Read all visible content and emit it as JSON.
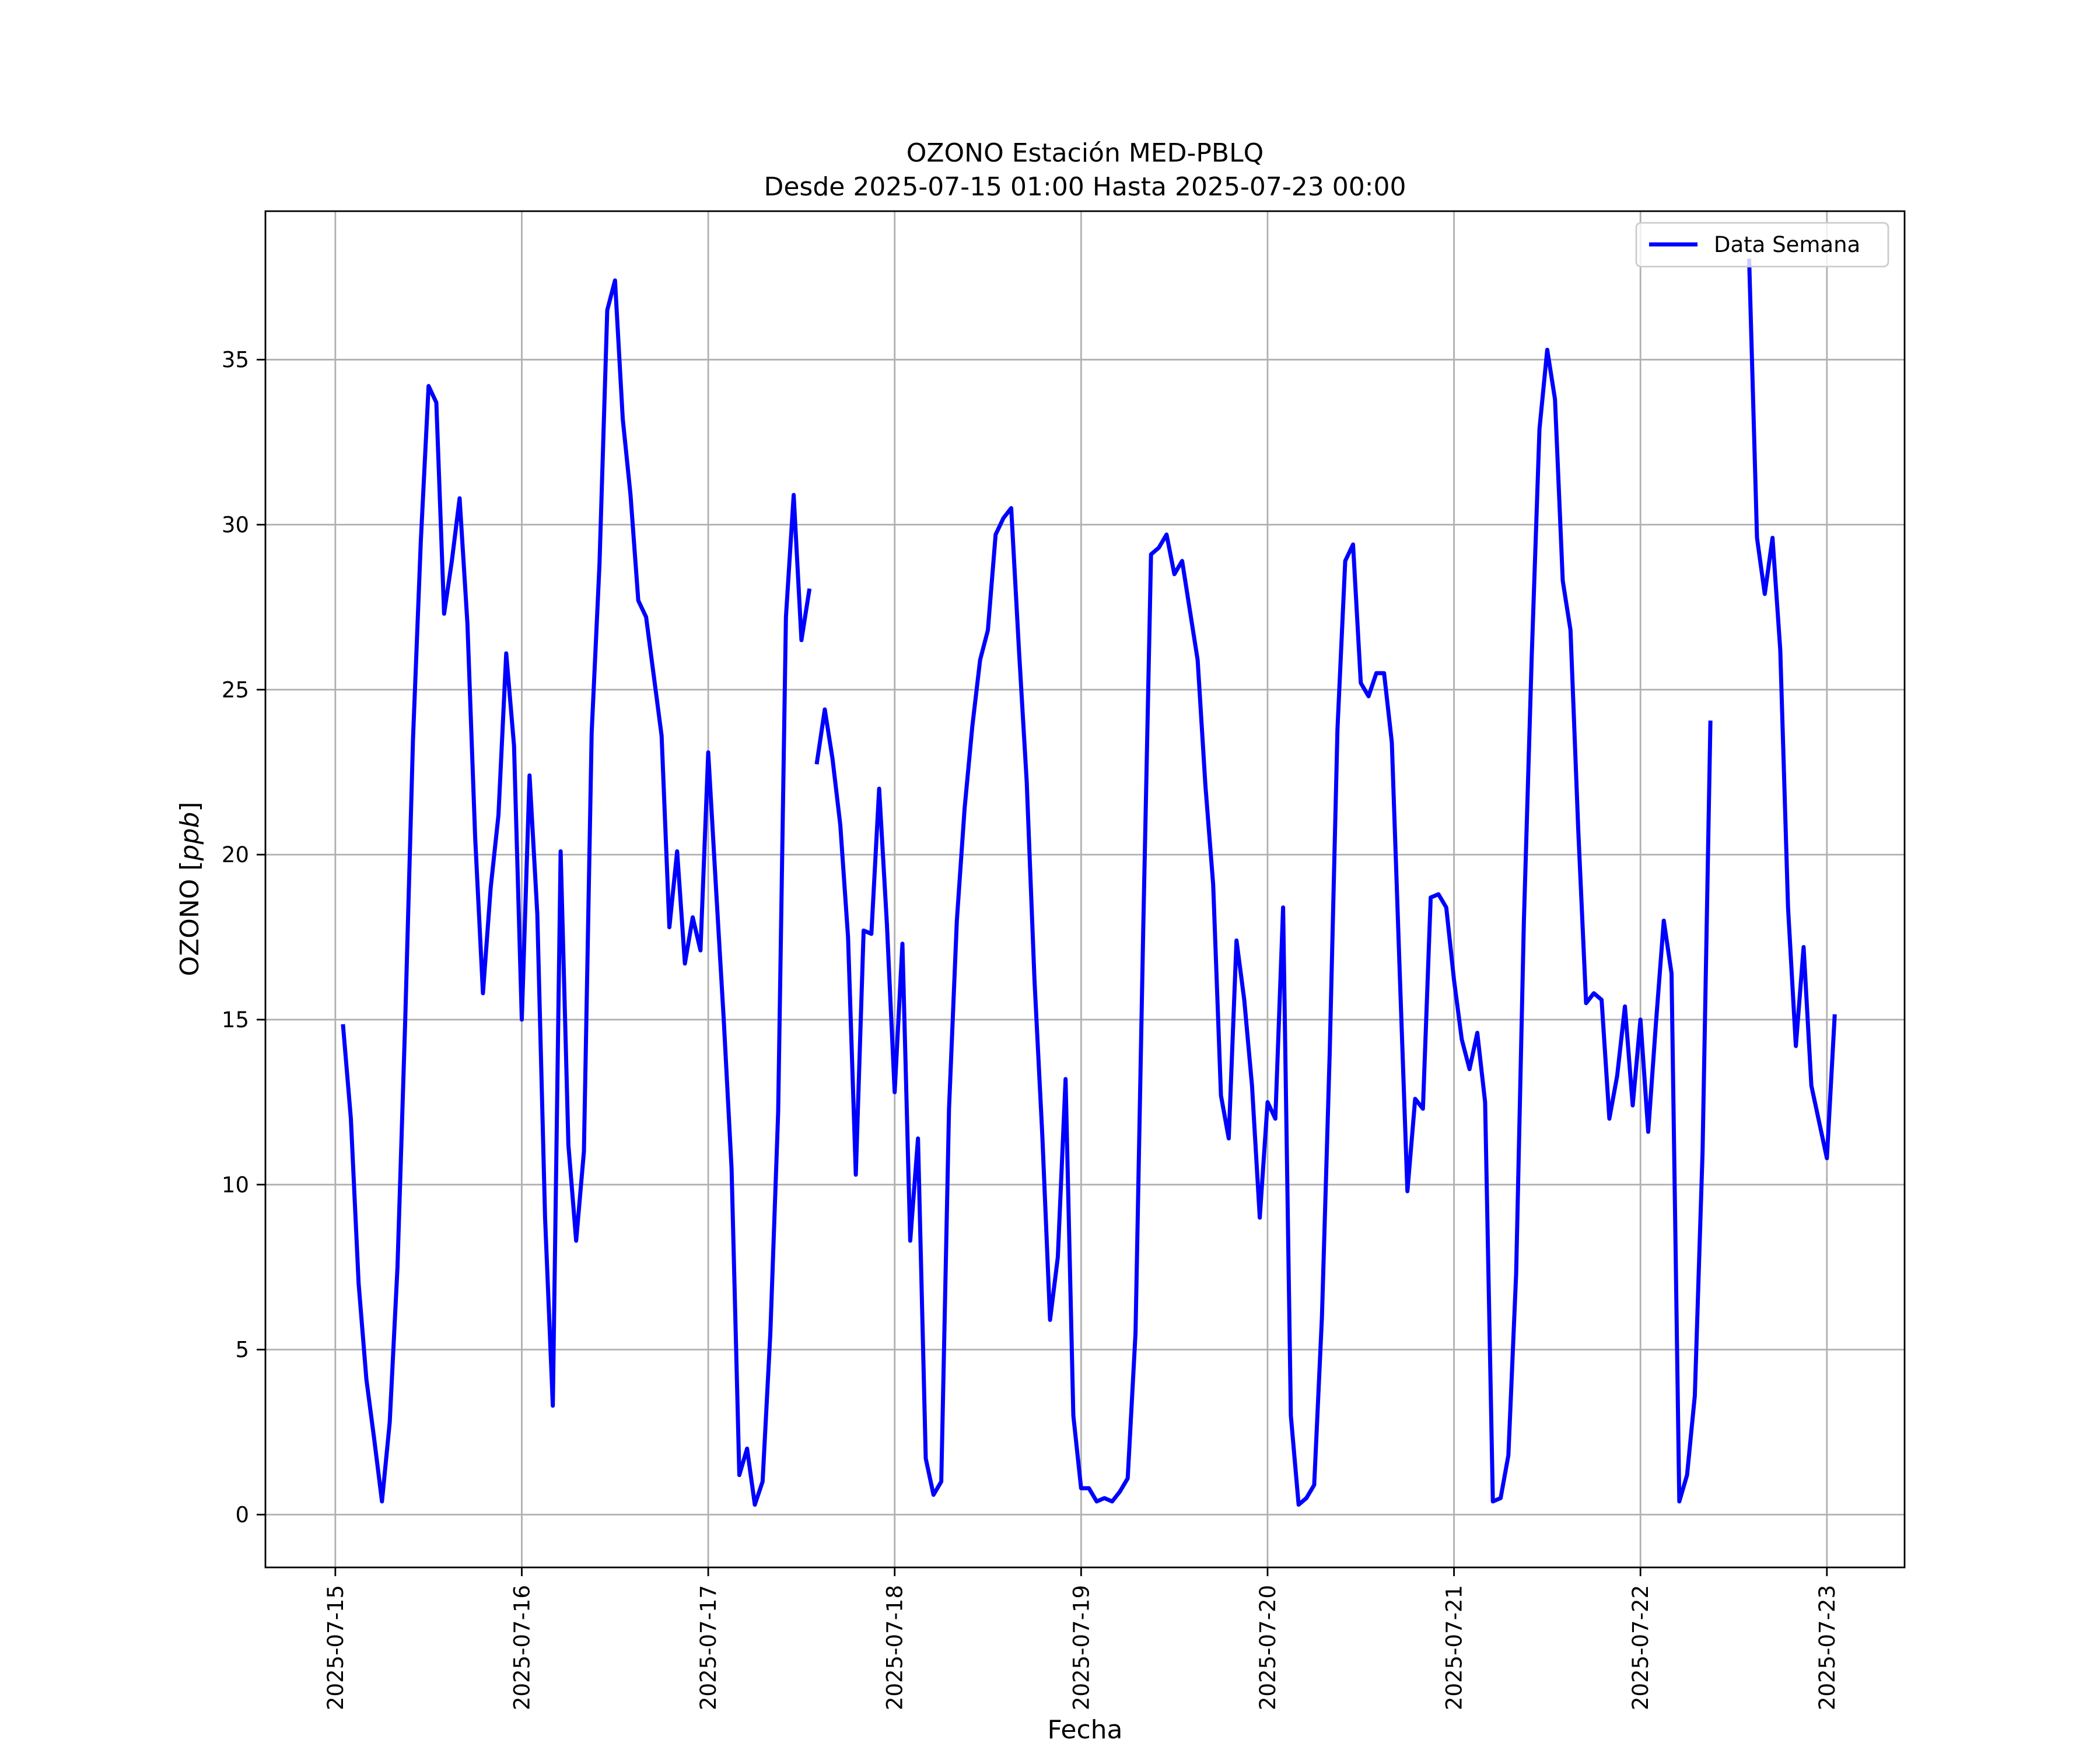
{
  "chart_data": {
    "type": "line",
    "title": "OZONO Estación MED-PBLQ",
    "subtitle": "Desde 2025-07-15 01:00 Hasta 2025-07-23 00:00",
    "xlabel": "Fecha",
    "ylabel_prefix": "OZONO [",
    "ylabel_unit": "ppb",
    "ylabel_suffix": "]",
    "xlim": [
      "2025-07-14 15:00",
      "2025-07-23 10:00"
    ],
    "ylim": [
      -1.6,
      39.5
    ],
    "x_ticks": [
      "2025-07-15",
      "2025-07-16",
      "2025-07-17",
      "2025-07-18",
      "2025-07-19",
      "2025-07-20",
      "2025-07-21",
      "2025-07-22",
      "2025-07-23"
    ],
    "y_ticks": [
      0,
      5,
      10,
      15,
      20,
      25,
      30,
      35
    ],
    "grid": true,
    "legend_position": "top-right",
    "series": [
      {
        "name": "Data Semana",
        "color": "#0000ff",
        "segments": [
          {
            "start": "2025-07-15 01:00",
            "step_hours": 1,
            "values": [
              14.8,
              12.0,
              7.0,
              4.1,
              2.3,
              0.4,
              2.8,
              7.5,
              15.0,
              23.5,
              29.5,
              34.2,
              33.7,
              27.3,
              28.9,
              30.8,
              27.0,
              20.5,
              15.8,
              19.0,
              21.2,
              26.1,
              23.3,
              15.0,
              22.4,
              18.2,
              9.0,
              3.3,
              20.1,
              11.2,
              8.3,
              11.0,
              23.7,
              28.8,
              36.5,
              37.4,
              33.2,
              30.9,
              27.7,
              27.2,
              25.4,
              23.6,
              17.8,
              20.1,
              16.7,
              18.1,
              17.1,
              23.1,
              19.0,
              15.0,
              10.5,
              1.2,
              2.0,
              0.3,
              1.0,
              5.5,
              12.2,
              27.2,
              30.9,
              26.5,
              28.0
            ]
          },
          {
            "start": "2025-07-17 14:00",
            "step_hours": 1,
            "values": [
              22.8,
              24.4,
              22.9,
              20.9,
              17.5,
              10.3,
              17.7,
              17.6,
              22.0,
              17.9,
              12.8,
              17.3,
              8.3,
              11.4,
              1.7,
              0.6,
              1.0,
              12.3,
              18.0,
              21.4,
              23.9,
              25.9,
              26.8,
              29.7,
              30.2,
              30.5,
              26.2,
              22.2,
              16.2,
              11.5,
              5.9,
              7.8,
              13.2,
              3.0,
              0.8,
              0.8,
              0.4,
              0.5,
              0.4,
              0.7,
              1.1,
              5.5,
              17.8,
              29.1,
              29.3,
              29.7,
              28.5,
              28.9,
              27.4,
              25.9,
              22.1,
              19.1,
              12.7,
              11.4,
              17.4,
              15.6,
              13.0,
              9.0,
              12.5,
              12.0,
              18.4,
              3.0,
              0.3,
              0.5,
              0.9,
              6.0,
              14.0,
              23.8,
              28.9,
              29.4,
              25.2,
              24.8,
              25.5,
              25.5,
              23.4,
              16.5,
              9.8,
              12.6,
              12.3,
              18.7,
              18.8,
              18.4,
              16.2,
              14.4,
              13.5,
              14.6,
              12.5,
              0.4,
              0.5,
              1.8,
              7.3,
              18.0,
              26.0,
              32.9,
              35.3,
              33.8,
              28.3,
              26.8,
              20.7,
              15.5,
              15.8,
              15.6,
              12.0,
              13.3,
              15.4,
              12.4,
              15.0,
              11.6,
              14.9,
              18.0,
              16.4,
              0.4,
              1.2,
              3.6,
              11.0,
              24.0
            ]
          },
          {
            "start": "2025-07-22 14:00",
            "step_hours": 1,
            "values": [
              38.0,
              29.6,
              27.9,
              29.6,
              26.2,
              18.4,
              14.2,
              17.2,
              13.0,
              11.9,
              10.8,
              15.1
            ]
          }
        ]
      }
    ]
  }
}
